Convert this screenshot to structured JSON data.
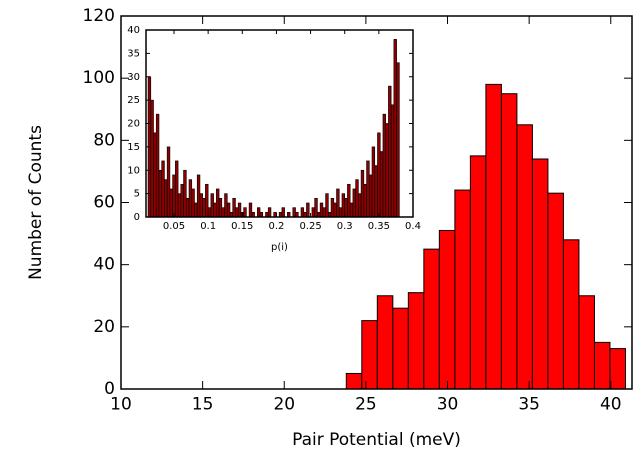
{
  "chart_data": [
    {
      "type": "histogram",
      "x_label": "Pair Potential (meV)",
      "y_label": "Number of Counts",
      "bins": [
        23.8,
        24.75,
        25.7,
        26.65,
        27.6,
        28.55,
        29.5,
        30.45,
        31.4,
        32.35,
        33.3,
        34.25,
        35.2,
        36.15,
        37.1,
        38.05,
        39.0,
        39.95,
        40.9
      ],
      "values": [
        5,
        22,
        30,
        26,
        31,
        45,
        51,
        64,
        75,
        98,
        95,
        85,
        74,
        63,
        48,
        30,
        15,
        13
      ],
      "color": "#ff0000",
      "xlim": [
        10,
        41.3
      ],
      "xticks": [
        10,
        15,
        20,
        25,
        30,
        35,
        40
      ],
      "ylim": [
        0,
        120
      ],
      "yticks": [
        0,
        20,
        40,
        60,
        80,
        100,
        120
      ]
    },
    {
      "type": "histogram",
      "x_label": "p(i)",
      "bins": [
        0.012,
        0.016,
        0.02,
        0.024,
        0.028,
        0.032,
        0.036,
        0.04,
        0.044,
        0.048,
        0.052,
        0.056,
        0.06,
        0.064,
        0.068,
        0.072,
        0.076,
        0.08,
        0.084,
        0.088,
        0.092,
        0.096,
        0.1,
        0.104,
        0.108,
        0.112,
        0.116,
        0.12,
        0.124,
        0.128,
        0.132,
        0.136,
        0.14,
        0.144,
        0.148,
        0.152,
        0.156,
        0.16,
        0.164,
        0.168,
        0.172,
        0.176,
        0.18,
        0.184,
        0.188,
        0.192,
        0.196,
        0.2,
        0.204,
        0.208,
        0.212,
        0.216,
        0.22,
        0.224,
        0.228,
        0.232,
        0.236,
        0.24,
        0.244,
        0.248,
        0.252,
        0.256,
        0.26,
        0.264,
        0.268,
        0.272,
        0.276,
        0.28,
        0.284,
        0.288,
        0.292,
        0.296,
        0.3,
        0.304,
        0.308,
        0.312,
        0.316,
        0.32,
        0.324,
        0.328,
        0.332,
        0.336,
        0.34,
        0.344,
        0.348,
        0.352,
        0.356,
        0.36,
        0.364,
        0.368,
        0.372,
        0.376,
        0.38
      ],
      "values": [
        30,
        25,
        18,
        22,
        10,
        12,
        8,
        15,
        6,
        9,
        12,
        5,
        7,
        10,
        4,
        8,
        6,
        3,
        9,
        5,
        4,
        7,
        2,
        5,
        3,
        6,
        4,
        2,
        5,
        3,
        1,
        4,
        2,
        3,
        1,
        2,
        0,
        3,
        1,
        0,
        2,
        1,
        0,
        1,
        2,
        0,
        1,
        0,
        1,
        2,
        0,
        1,
        0,
        2,
        1,
        0,
        2,
        1,
        3,
        0,
        2,
        4,
        1,
        3,
        2,
        5,
        1,
        4,
        3,
        6,
        2,
        5,
        4,
        7,
        3,
        6,
        8,
        5,
        10,
        7,
        12,
        9,
        15,
        11,
        18,
        14,
        22,
        20,
        28,
        24,
        38,
        33
      ],
      "color": "#8b0000",
      "xlim": [
        0.009,
        0.4
      ],
      "xticks": [
        0.05,
        0.1,
        0.15,
        0.2,
        0.25,
        0.3,
        0.35,
        0.4
      ],
      "ylim": [
        0,
        40
      ],
      "yticks": [
        0,
        5,
        10,
        15,
        20,
        25,
        30,
        35,
        40
      ]
    }
  ]
}
